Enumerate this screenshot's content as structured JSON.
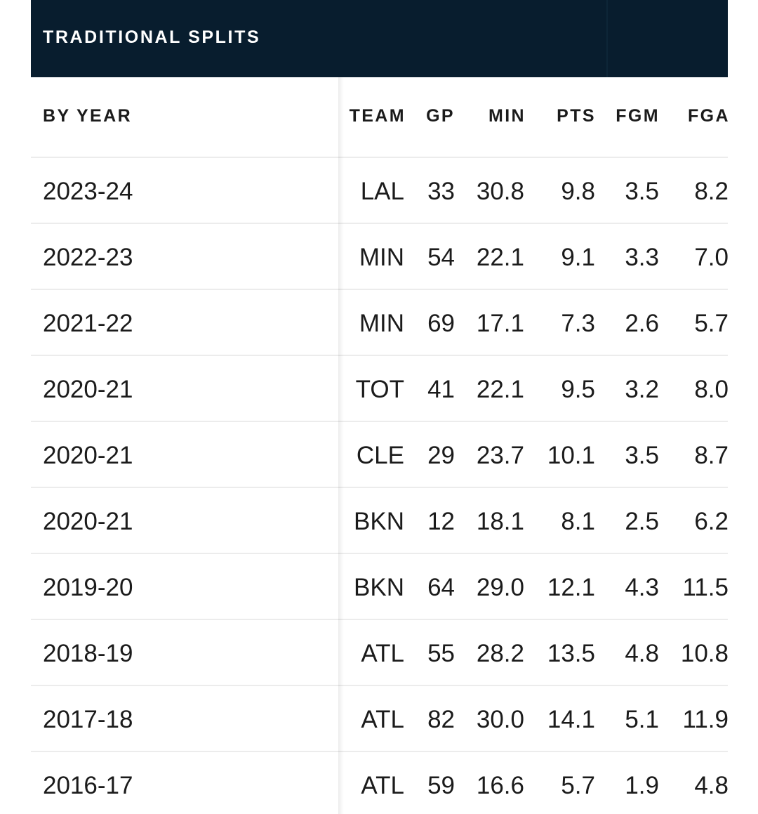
{
  "header": {
    "title": "TRADITIONAL SPLITS"
  },
  "table": {
    "columns": {
      "year": "BY YEAR",
      "team": "TEAM",
      "gp": "GP",
      "min": "MIN",
      "pts": "PTS",
      "fgm": "FGM",
      "fga": "FGA"
    },
    "rows": [
      {
        "year": "2023-24",
        "team": "LAL",
        "gp": "33",
        "min": "30.8",
        "pts": "9.8",
        "fgm": "3.5",
        "fga": "8.2"
      },
      {
        "year": "2022-23",
        "team": "MIN",
        "gp": "54",
        "min": "22.1",
        "pts": "9.1",
        "fgm": "3.3",
        "fga": "7.0"
      },
      {
        "year": "2021-22",
        "team": "MIN",
        "gp": "69",
        "min": "17.1",
        "pts": "7.3",
        "fgm": "2.6",
        "fga": "5.7"
      },
      {
        "year": "2020-21",
        "team": "TOT",
        "gp": "41",
        "min": "22.1",
        "pts": "9.5",
        "fgm": "3.2",
        "fga": "8.0"
      },
      {
        "year": "2020-21",
        "team": "CLE",
        "gp": "29",
        "min": "23.7",
        "pts": "10.1",
        "fgm": "3.5",
        "fga": "8.7"
      },
      {
        "year": "2020-21",
        "team": "BKN",
        "gp": "12",
        "min": "18.1",
        "pts": "8.1",
        "fgm": "2.5",
        "fga": "6.2"
      },
      {
        "year": "2019-20",
        "team": "BKN",
        "gp": "64",
        "min": "29.0",
        "pts": "12.1",
        "fgm": "4.3",
        "fga": "11.5"
      },
      {
        "year": "2018-19",
        "team": "ATL",
        "gp": "55",
        "min": "28.2",
        "pts": "13.5",
        "fgm": "4.8",
        "fga": "10.8"
      },
      {
        "year": "2017-18",
        "team": "ATL",
        "gp": "82",
        "min": "30.0",
        "pts": "14.1",
        "fgm": "5.1",
        "fga": "11.9"
      },
      {
        "year": "2016-17",
        "team": "ATL",
        "gp": "59",
        "min": "16.6",
        "pts": "5.7",
        "fgm": "1.9",
        "fga": "4.8"
      }
    ]
  },
  "colors": {
    "header_bg": "#081d2e",
    "link": "#1d6fbd",
    "text": "#1b1b1b",
    "row_border": "#ececec"
  }
}
